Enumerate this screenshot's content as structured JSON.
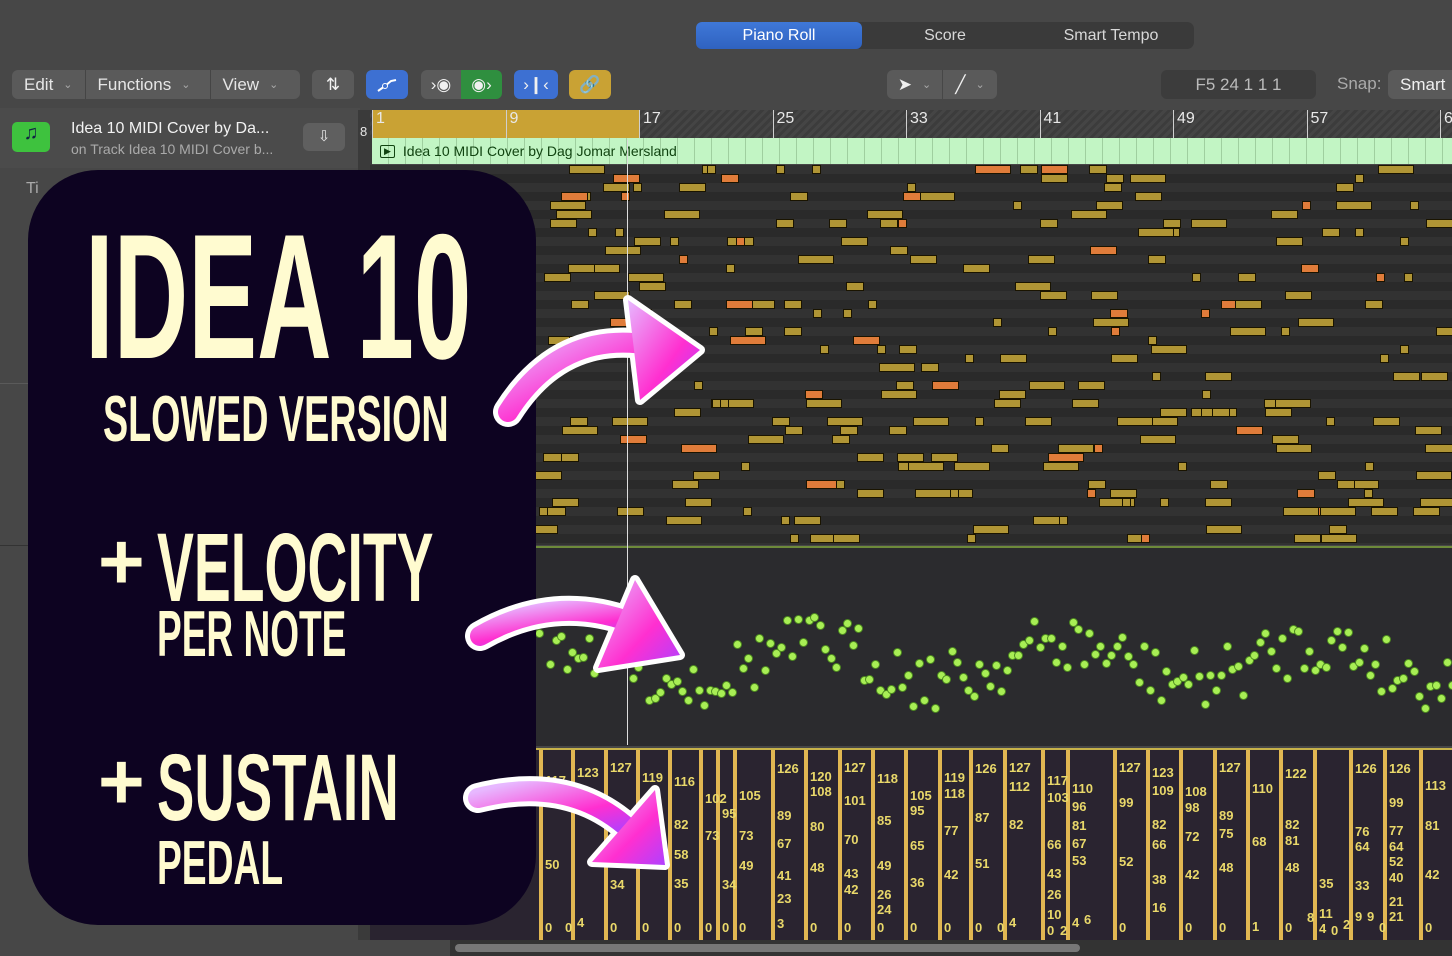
{
  "tabs": [
    {
      "label": "Piano Roll",
      "active": true
    },
    {
      "label": "Score"
    },
    {
      "label": "Smart Tempo"
    }
  ],
  "toolbar": {
    "menus": [
      "Edit",
      "Functions",
      "View"
    ],
    "tools": [
      "pointer-tool",
      "pencil-tool"
    ],
    "position_display": "F5  24 1 1 1",
    "snap_label": "Snap:",
    "snap_value": "Smart",
    "icons": {
      "collapse": "collapse-icon",
      "automation": "automation-curve-icon",
      "midi_in": "midi-in-icon",
      "midi_out": "midi-out-icon",
      "catch": "catch-playhead-icon",
      "link": "link-icon"
    },
    "colors": {
      "blue": "#3d70d2",
      "green": "#2f8f3f",
      "gold": "#c9a234"
    }
  },
  "track": {
    "title": "Idea 10 MIDI Cover by Da...",
    "subtitle": "on Track Idea 10 MIDI Cover b...",
    "icon": "music-note-icon",
    "partial_label": "Ti"
  },
  "ruler": {
    "marks": [
      "1",
      "9",
      "17",
      "25",
      "33",
      "41",
      "49",
      "57",
      "6"
    ],
    "left_mark": "8"
  },
  "region": {
    "name": "Idea 10 MIDI Cover by Dag Jomar Mersland",
    "color": "#c2f5c4"
  },
  "overlay": {
    "title": "IDEA 10",
    "subtitle": "SLOWED VERSION",
    "plus1": "+",
    "line2": "VELOCITY",
    "line2b": "PER NOTE",
    "plus2": "+",
    "line3": "SUSTAIN",
    "line3b": "PEDAL",
    "bg": "#0d0321",
    "text_color": "#fffbd0",
    "arrow_color": "#ff2fd0"
  },
  "sustain_lanes": [
    [
      117,
      50,
      0
    ],
    [
      123,
      4,
      0
    ],
    [
      127,
      34,
      0
    ],
    [
      119,
      0
    ],
    [
      116,
      82,
      58,
      35,
      0
    ],
    [
      102,
      73,
      0
    ],
    [
      95,
      34,
      0
    ],
    [
      105,
      73,
      49,
      0
    ],
    [
      126,
      89,
      67,
      41,
      23,
      3
    ],
    [
      120,
      108,
      80,
      48,
      0
    ],
    [
      127,
      101,
      70,
      43,
      42,
      0
    ],
    [
      118,
      85,
      49,
      26,
      24,
      0
    ],
    [
      105,
      95,
      65,
      36,
      0
    ],
    [
      119,
      118,
      77,
      42,
      0
    ],
    [
      126,
      87,
      51,
      0
    ],
    [
      127,
      112,
      82,
      4,
      0
    ],
    [
      117,
      103,
      10,
      66,
      43,
      26,
      0
    ],
    [
      110,
      96,
      81,
      67,
      53,
      4,
      6,
      2
    ],
    [
      127,
      99,
      52,
      0
    ],
    [
      123,
      109,
      82,
      66,
      38,
      16
    ],
    [
      108,
      98,
      72,
      42,
      0
    ],
    [
      127,
      89,
      75,
      48,
      0
    ],
    [
      110,
      68,
      1
    ],
    [
      122,
      82,
      81,
      48,
      0
    ],
    [
      11,
      8,
      4,
      35,
      0
    ],
    [
      126,
      9,
      76,
      64,
      33,
      2,
      9,
      0
    ],
    [
      126,
      99,
      77,
      64,
      52,
      40,
      21,
      21
    ],
    [
      113,
      81,
      42,
      0
    ]
  ]
}
